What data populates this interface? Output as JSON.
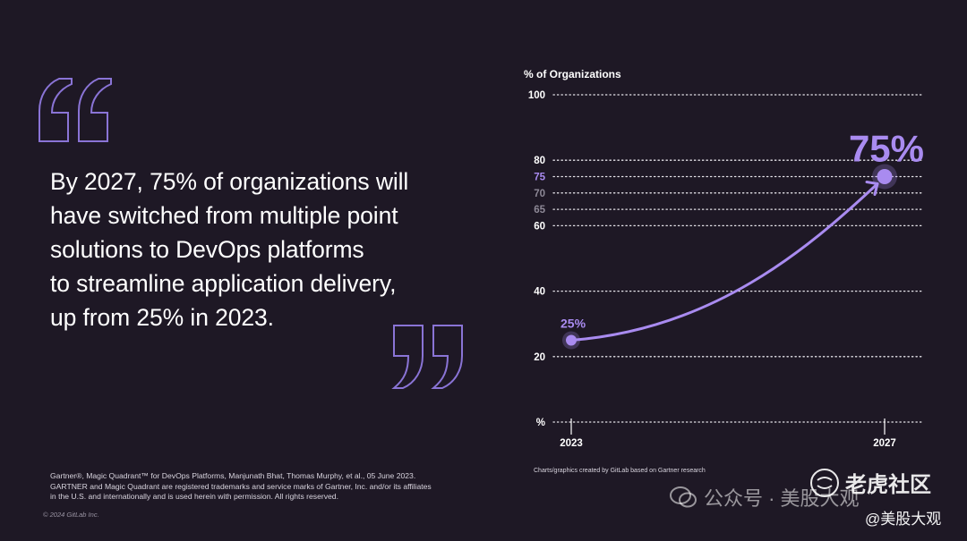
{
  "quote": {
    "lines": [
      "By 2027, 75% of organizations will",
      "have switched from multiple point",
      "solutions to DevOps platforms",
      "to streamline application delivery,",
      "up from 25% in 2023."
    ]
  },
  "footnote": {
    "lines": [
      "Gartner®, Magic Quadrant™ for DevOps Platforms, Manjunath Bhat, Thomas Murphy, et al., 05 June 2023.",
      "GARTNER and Magic Quadrant are registered trademarks and service marks of Gartner, Inc. and/or its affiliates",
      "in the U.S. and internationally and is used herein with permission. All rights reserved."
    ],
    "copyright": "© 2024 GitLab Inc."
  },
  "chart_credit": "Charts/graphics created by GitLab based on Gartner research",
  "colors": {
    "background": "#1e1825",
    "accent": "#a98bf0",
    "quote_outline": "#8a74d6",
    "grid": "#e8e6ec",
    "muted_tick": "#8d8896"
  },
  "chart_data": {
    "type": "line",
    "ylabel": "% of Organizations",
    "ylim": [
      0,
      100
    ],
    "ytick_labels": [
      "%",
      "20",
      "40",
      "60",
      "65",
      "70",
      "75",
      "80",
      "100"
    ],
    "ytick_values": [
      0,
      20,
      40,
      60,
      65,
      70,
      75,
      80,
      100
    ],
    "highlight_tick": "75",
    "muted_ticks": [
      "65",
      "70"
    ],
    "x_labels": [
      "2023",
      "2027"
    ],
    "x": [
      2023,
      2027
    ],
    "series": [
      {
        "values": [
          25,
          75
        ]
      }
    ],
    "data_labels": [
      "25%",
      "75%"
    ],
    "grid": true,
    "grid_style": "dotted"
  },
  "watermark": {
    "wechat_text": "公众号 · 美股大观",
    "logo_text": "老虎社区",
    "handle": "@美股大观"
  }
}
